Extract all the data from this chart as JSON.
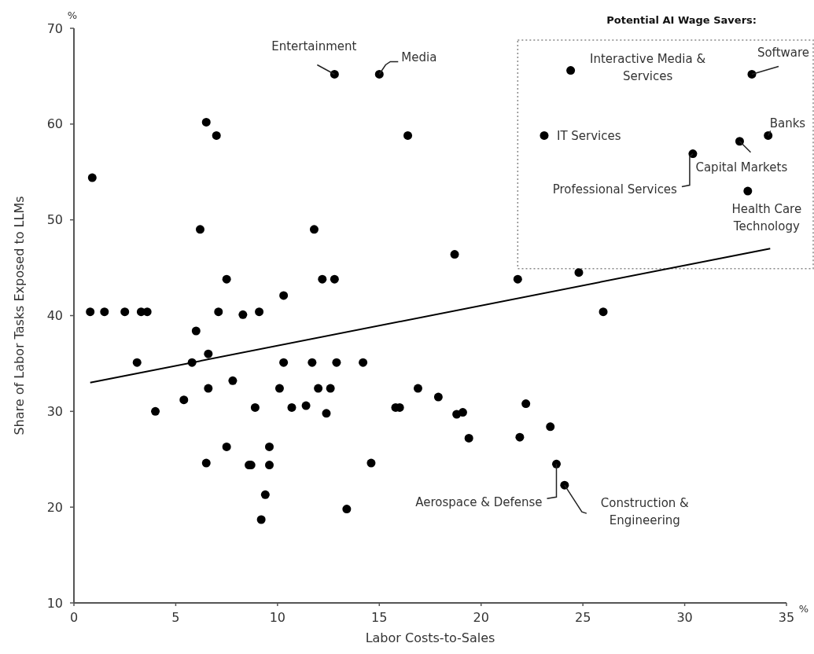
{
  "chart_data": {
    "type": "scatter",
    "xlabel": "Labor Costs-to-Sales",
    "ylabel": "Share of Labor Tasks Exposed to LLMs",
    "xlim": [
      0,
      35
    ],
    "ylim": [
      10,
      70
    ],
    "xticks": [
      0,
      5,
      10,
      15,
      20,
      25,
      30,
      35
    ],
    "yticks": [
      10,
      20,
      30,
      40,
      50,
      60,
      70
    ],
    "grid": false,
    "marker": "circle",
    "series": [
      {
        "color": "#000000",
        "x": [
          12.8,
          15.0,
          24.4,
          33.3,
          23.1,
          34.1,
          32.7,
          30.4,
          33.1,
          23.7,
          24.1,
          6.5,
          7.0,
          16.4,
          0.9,
          6.2,
          11.8,
          7.5,
          12.2,
          12.8,
          10.3,
          0.8,
          1.5,
          2.5,
          3.3,
          3.6,
          7.1,
          9.1,
          8.3,
          6.0,
          3.1,
          5.8,
          6.6,
          10.3,
          11.7,
          12.9,
          14.2,
          7.8,
          6.6,
          10.1,
          12.0,
          12.6,
          16.9,
          5.4,
          4.0,
          8.9,
          10.7,
          11.4,
          12.4,
          15.8,
          16.0,
          17.9,
          18.8,
          19.1,
          19.4,
          22.2,
          21.9,
          23.4,
          7.5,
          9.6,
          6.5,
          8.6,
          8.7,
          9.6,
          14.6,
          9.4,
          9.2,
          13.4,
          18.7,
          21.8,
          24.8,
          26.0
        ],
        "values": [
          65.2,
          65.2,
          65.6,
          65.2,
          58.8,
          58.8,
          58.2,
          56.9,
          53.0,
          24.5,
          22.3,
          60.2,
          58.8,
          58.8,
          54.4,
          49.0,
          49.0,
          43.8,
          43.8,
          43.8,
          42.1,
          40.4,
          40.4,
          40.4,
          40.4,
          40.4,
          40.4,
          40.4,
          40.1,
          38.4,
          35.1,
          35.1,
          36.0,
          35.1,
          35.1,
          35.1,
          35.1,
          33.2,
          32.4,
          32.4,
          32.4,
          32.4,
          32.4,
          31.2,
          30.0,
          30.4,
          30.4,
          30.6,
          29.8,
          30.4,
          30.4,
          31.5,
          29.7,
          29.9,
          27.2,
          30.8,
          27.3,
          28.4,
          26.3,
          26.3,
          24.6,
          24.4,
          24.4,
          24.4,
          24.6,
          21.3,
          18.7,
          19.8,
          46.4,
          43.8,
          44.5,
          40.4
        ]
      },
      {
        "type": "line",
        "color": "#000000",
        "x": [
          0.8,
          34.2
        ],
        "values": [
          33.0,
          47.0
        ],
        "marker": "none",
        "line_style": "solid"
      }
    ],
    "annotations": [
      "%",
      "%",
      "Potential AI Wage Savers:",
      {
        "text": "Entertainment",
        "x": 12.8,
        "y": 65.2
      },
      {
        "text": "Media",
        "x": 15.0,
        "y": 65.2
      },
      {
        "text": "Interactive Media & Services",
        "x": 24.4,
        "y": 65.6
      },
      {
        "text": "Software",
        "x": 33.3,
        "y": 65.2
      },
      {
        "text": "IT Services",
        "x": 23.1,
        "y": 58.8
      },
      {
        "text": "Banks",
        "x": 34.1,
        "y": 58.8
      },
      {
        "text": "Capital Markets",
        "x": 32.7,
        "y": 58.2
      },
      {
        "text": "Professional Services",
        "x": 30.4,
        "y": 56.9
      },
      {
        "text": "Health Care Technology",
        "x": 33.1,
        "y": 53.0
      },
      {
        "text": "Aerospace & Defense",
        "x": 23.7,
        "y": 24.5
      },
      {
        "text": "Construction & Engineering",
        "x": 24.1,
        "y": 22.3
      }
    ]
  }
}
